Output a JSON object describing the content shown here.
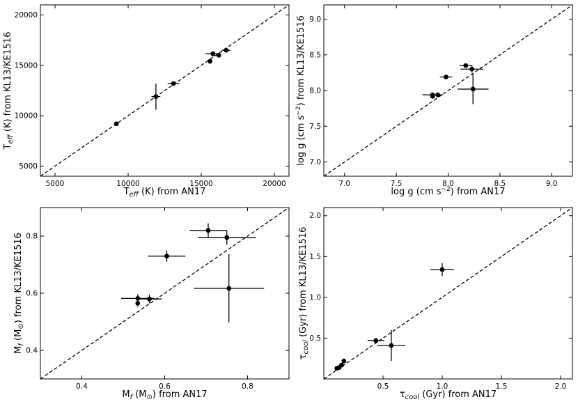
{
  "chart_data": [
    {
      "type": "scatter",
      "id": "teff",
      "title": "",
      "xlabel": {
        "parts": [
          [
            "T",
            ""
          ],
          [
            "eff",
            "sub"
          ],
          [
            " (K) from AN17",
            ""
          ]
        ]
      },
      "ylabel": {
        "parts": [
          [
            "T",
            ""
          ],
          [
            "eff",
            "sub"
          ],
          [
            " (K) from KL13/KE1516",
            ""
          ]
        ]
      },
      "xlim": [
        4000,
        21000
      ],
      "ylim": [
        4000,
        21000
      ],
      "xticks": [
        5000,
        10000,
        15000,
        20000
      ],
      "yticks": [
        5000,
        10000,
        15000,
        20000
      ],
      "tick_labels_x": [
        "5000",
        "10000",
        "15000",
        "20000"
      ],
      "tick_labels_y": [
        "5000",
        "10000",
        "15000",
        "20000"
      ],
      "identity_line": true,
      "grid": false,
      "points": [
        {
          "x": 9200,
          "y": 9200,
          "xerr": 0,
          "yerr": 0
        },
        {
          "x": 11900,
          "y": 11900,
          "xerr": 300,
          "yerr": 1300
        },
        {
          "x": 13100,
          "y": 13200,
          "xerr": 400,
          "yerr": 100
        },
        {
          "x": 15600,
          "y": 15400,
          "xerr": 0,
          "yerr": 150
        },
        {
          "x": 15800,
          "y": 16150,
          "xerr": 500,
          "yerr": 100
        },
        {
          "x": 16200,
          "y": 16000,
          "xerr": 0,
          "yerr": 100
        },
        {
          "x": 16700,
          "y": 16500,
          "xerr": 300,
          "yerr": 200
        }
      ]
    },
    {
      "type": "scatter",
      "id": "logg",
      "title": "",
      "xlabel": {
        "parts": [
          [
            "log g (cm s",
            ""
          ],
          [
            "−2",
            "sup"
          ],
          [
            ") from AN17",
            ""
          ]
        ]
      },
      "ylabel": {
        "parts": [
          [
            "log g (cm s",
            ""
          ],
          [
            "−2",
            "sup"
          ],
          [
            ") from KL13/KE1516",
            ""
          ]
        ]
      },
      "xlim": [
        6.8,
        9.2
      ],
      "ylim": [
        6.8,
        9.2
      ],
      "xticks": [
        7.0,
        7.5,
        8.0,
        8.5,
        9.0
      ],
      "yticks": [
        7.0,
        7.5,
        8.0,
        8.5,
        9.0
      ],
      "tick_labels_x": [
        "7.0",
        "7.5",
        "8.0",
        "8.5",
        "9.0"
      ],
      "tick_labels_y": [
        "7.0",
        "7.5",
        "8.0",
        "8.5",
        "9.0"
      ],
      "identity_line": true,
      "grid": false,
      "points": [
        {
          "x": 7.85,
          "y": 7.94,
          "xerr": 0.1,
          "yerr": 0.03
        },
        {
          "x": 7.85,
          "y": 7.92,
          "xerr": 0,
          "yerr": 0.03
        },
        {
          "x": 7.9,
          "y": 7.94,
          "xerr": 0,
          "yerr": 0
        },
        {
          "x": 7.98,
          "y": 8.19,
          "xerr": 0.06,
          "yerr": 0
        },
        {
          "x": 8.17,
          "y": 8.35,
          "xerr": 0.06,
          "yerr": 0
        },
        {
          "x": 8.23,
          "y": 8.3,
          "xerr": 0.11,
          "yerr": 0.05
        },
        {
          "x": 8.24,
          "y": 8.02,
          "xerr": 0.15,
          "yerr": 0.21
        }
      ]
    },
    {
      "type": "scatter",
      "id": "mf",
      "title": "",
      "xlabel": {
        "parts": [
          [
            "M",
            ""
          ],
          [
            "f",
            "sub"
          ],
          [
            " (M",
            ""
          ],
          [
            "⊙",
            "sub"
          ],
          [
            ") from AN17",
            ""
          ]
        ]
      },
      "ylabel": {
        "parts": [
          [
            "M",
            ""
          ],
          [
            "f",
            "sub"
          ],
          [
            " (M",
            ""
          ],
          [
            "⊙",
            "sub"
          ],
          [
            ") from KL13/KE1516",
            ""
          ]
        ]
      },
      "xlim": [
        0.3,
        0.9
      ],
      "ylim": [
        0.3,
        0.9
      ],
      "xticks": [
        0.4,
        0.6,
        0.8
      ],
      "yticks": [
        0.4,
        0.6,
        0.8
      ],
      "tick_labels_x": [
        "0.4",
        "0.6",
        "0.8"
      ],
      "tick_labels_y": [
        "0.4",
        "0.6",
        "0.8"
      ],
      "identity_line": true,
      "grid": false,
      "points": [
        {
          "x": 0.535,
          "y": 0.565,
          "xerr": 0,
          "yerr": 0.012
        },
        {
          "x": 0.535,
          "y": 0.582,
          "xerr": 0.04,
          "yerr": 0.015
        },
        {
          "x": 0.563,
          "y": 0.58,
          "xerr": 0.03,
          "yerr": 0.015
        },
        {
          "x": 0.605,
          "y": 0.73,
          "xerr": 0.045,
          "yerr": 0.02
        },
        {
          "x": 0.705,
          "y": 0.82,
          "xerr": 0.045,
          "yerr": 0.025
        },
        {
          "x": 0.75,
          "y": 0.795,
          "xerr": 0.07,
          "yerr": 0.025
        },
        {
          "x": 0.755,
          "y": 0.617,
          "xerr": 0.085,
          "yerr": 0.12
        }
      ]
    },
    {
      "type": "scatter",
      "id": "tcool",
      "title": "",
      "xlabel": {
        "parts": [
          [
            "τ",
            ""
          ],
          [
            "cool",
            "sub"
          ],
          [
            " (Gyr) from AN17",
            ""
          ]
        ]
      },
      "ylabel": {
        "parts": [
          [
            "τ",
            ""
          ],
          [
            "cool",
            "sub"
          ],
          [
            " (Gyr) from KL13/KE1516",
            ""
          ]
        ]
      },
      "xlim": [
        0.0,
        2.1
      ],
      "ylim": [
        0.0,
        2.1
      ],
      "xticks": [
        0.5,
        1.0,
        1.5,
        2.0
      ],
      "yticks": [
        0.5,
        1.0,
        1.5,
        2.0
      ],
      "tick_labels_x": [
        "0.5",
        "1.0",
        "1.5",
        "2.0"
      ],
      "tick_labels_y": [
        "0.5",
        "1.0",
        "1.5",
        "2.0"
      ],
      "identity_line": true,
      "grid": false,
      "points": [
        {
          "x": 0.11,
          "y": 0.13,
          "xerr": 0,
          "yerr": 0
        },
        {
          "x": 0.13,
          "y": 0.14,
          "xerr": 0,
          "yerr": 0
        },
        {
          "x": 0.15,
          "y": 0.17,
          "xerr": 0,
          "yerr": 0
        },
        {
          "x": 0.17,
          "y": 0.22,
          "xerr": 0,
          "yerr": 0
        },
        {
          "x": 0.44,
          "y": 0.47,
          "xerr": 0.07,
          "yerr": 0.03
        },
        {
          "x": 0.57,
          "y": 0.41,
          "xerr": 0.12,
          "yerr": 0.19
        },
        {
          "x": 1.0,
          "y": 1.34,
          "xerr": 0.1,
          "yerr": 0.08
        }
      ]
    }
  ]
}
